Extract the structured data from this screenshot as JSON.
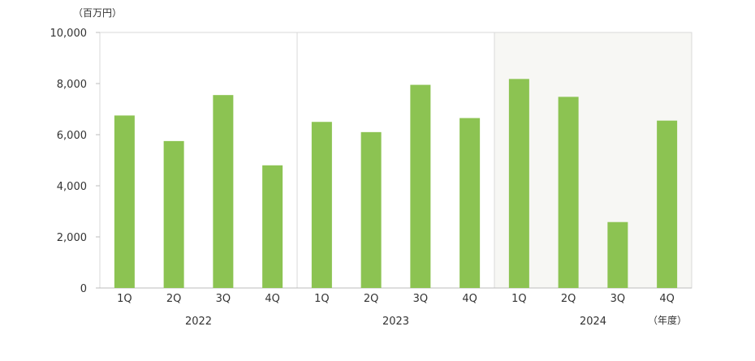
{
  "chart_data": {
    "type": "bar",
    "unit_label": "（百万円）",
    "x_unit_label": "（年度）",
    "ylim": [
      0,
      10000
    ],
    "yticks": [
      0,
      2000,
      4000,
      6000,
      8000,
      10000
    ],
    "ytick_labels": [
      "0",
      "2,000",
      "4,000",
      "6,000",
      "8,000",
      "10,000"
    ],
    "colors": {
      "bar": "#8cc352",
      "shade": "#f7f7f4",
      "axis": "#bdbdbd",
      "text": "#333333"
    },
    "groups": [
      {
        "label": "2022",
        "shaded": false,
        "categories": [
          "1Q",
          "2Q",
          "3Q",
          "4Q"
        ],
        "values": [
          6750,
          5750,
          7550,
          4800
        ]
      },
      {
        "label": "2023",
        "shaded": false,
        "categories": [
          "1Q",
          "2Q",
          "3Q",
          "4Q"
        ],
        "values": [
          6500,
          6100,
          7950,
          6650
        ]
      },
      {
        "label": "2024",
        "shaded": true,
        "categories": [
          "1Q",
          "2Q",
          "3Q",
          "4Q"
        ],
        "values": [
          8180,
          7480,
          2580,
          6550
        ]
      }
    ]
  }
}
